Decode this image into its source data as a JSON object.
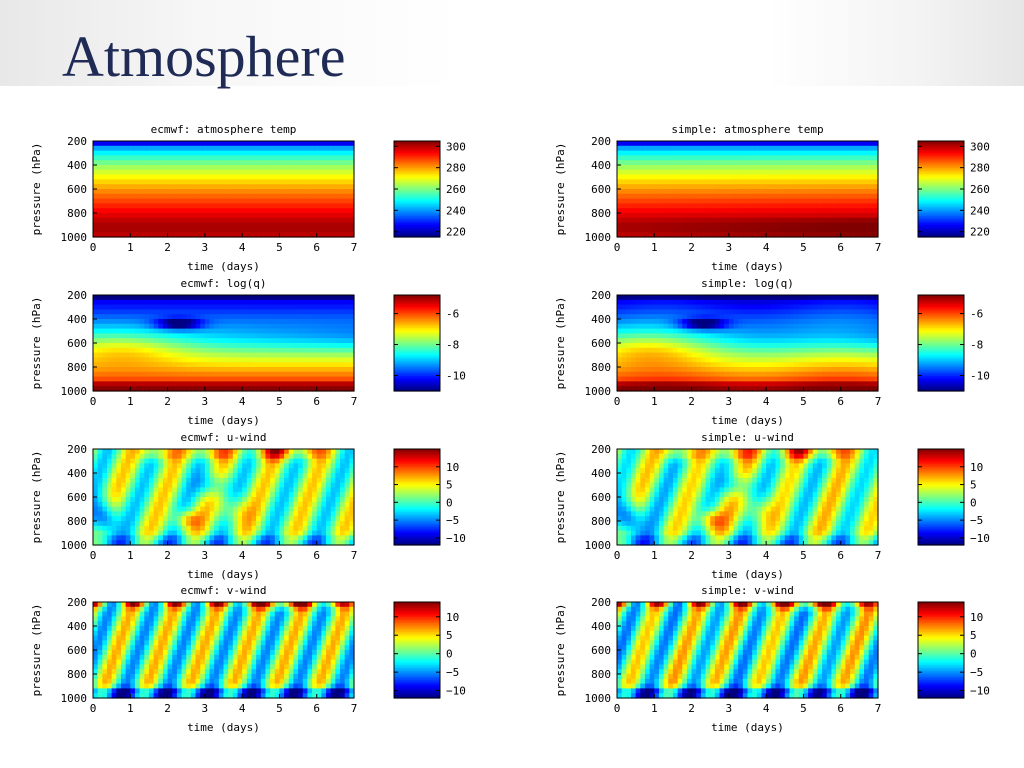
{
  "slide": {
    "title": "Atmosphere"
  },
  "colormap": "jet",
  "chart_data": [
    {
      "id": "ecmwf-temp",
      "type": "heatmap",
      "title": "ecmwf: atmosphere temp",
      "xlabel": "time (days)",
      "ylabel": "pressure (hPa)",
      "xlim": [
        0,
        7
      ],
      "ylim": [
        200,
        1000
      ],
      "y_inverted": true,
      "xticks": [
        "0",
        "1",
        "2",
        "3",
        "4",
        "5",
        "6",
        "7"
      ],
      "yticks": [
        "200",
        "400",
        "600",
        "800",
        "1000"
      ],
      "colorbar": {
        "range": [
          215,
          305
        ],
        "ticks": [
          220,
          240,
          260,
          280,
          300
        ],
        "tick_labels": [
          "220",
          "240",
          "260",
          "280",
          "300"
        ]
      },
      "field": "temp",
      "variant": "ecmwf"
    },
    {
      "id": "simple-temp",
      "type": "heatmap",
      "title": "simple: atmosphere temp",
      "xlabel": "time (days)",
      "ylabel": "pressure (hPa)",
      "xlim": [
        0,
        7
      ],
      "ylim": [
        200,
        1000
      ],
      "y_inverted": true,
      "xticks": [
        "0",
        "1",
        "2",
        "3",
        "4",
        "5",
        "6",
        "7"
      ],
      "yticks": [
        "200",
        "400",
        "600",
        "800",
        "1000"
      ],
      "colorbar": {
        "range": [
          215,
          305
        ],
        "ticks": [
          220,
          240,
          260,
          280,
          300
        ],
        "tick_labels": [
          "220",
          "240",
          "260",
          "280",
          "300"
        ]
      },
      "field": "temp",
      "variant": "simple"
    },
    {
      "id": "ecmwf-logq",
      "type": "heatmap",
      "title": "ecmwf: log(q)",
      "xlabel": "time (days)",
      "ylabel": "pressure (hPa)",
      "xlim": [
        0,
        7
      ],
      "ylim": [
        200,
        1000
      ],
      "y_inverted": true,
      "xticks": [
        "0",
        "1",
        "2",
        "3",
        "4",
        "5",
        "6",
        "7"
      ],
      "yticks": [
        "200",
        "400",
        "600",
        "800",
        "1000"
      ],
      "colorbar": {
        "range": [
          -11,
          -4.8
        ],
        "ticks": [
          -6,
          -8,
          -10
        ],
        "tick_labels": [
          "-6",
          "-8",
          "-10"
        ]
      },
      "field": "logq",
      "variant": "ecmwf"
    },
    {
      "id": "simple-logq",
      "type": "heatmap",
      "title": "simple: log(q)",
      "xlabel": "time (days)",
      "ylabel": "pressure (hPa)",
      "xlim": [
        0,
        7
      ],
      "ylim": [
        200,
        1000
      ],
      "y_inverted": true,
      "xticks": [
        "0",
        "1",
        "2",
        "3",
        "4",
        "5",
        "6",
        "7"
      ],
      "yticks": [
        "200",
        "400",
        "600",
        "800",
        "1000"
      ],
      "colorbar": {
        "range": [
          -11,
          -4.8
        ],
        "ticks": [
          -6,
          -8,
          -10
        ],
        "tick_labels": [
          "-6",
          "-8",
          "-10"
        ]
      },
      "field": "logq",
      "variant": "simple"
    },
    {
      "id": "ecmwf-u",
      "type": "heatmap",
      "title": "ecmwf: u-wind",
      "xlabel": "time (days)",
      "ylabel": "pressure (hPa)",
      "xlim": [
        0,
        7
      ],
      "ylim": [
        200,
        1000
      ],
      "y_inverted": true,
      "xticks": [
        "0",
        "1",
        "2",
        "3",
        "4",
        "5",
        "6",
        "7"
      ],
      "yticks": [
        "200",
        "400",
        "600",
        "800",
        "1000"
      ],
      "colorbar": {
        "range": [
          -12,
          15
        ],
        "ticks": [
          10,
          5,
          0,
          -5,
          -10
        ],
        "tick_labels": [
          "10",
          "5",
          "0",
          "−5",
          "−10"
        ]
      },
      "field": "u",
      "variant": "ecmwf"
    },
    {
      "id": "simple-u",
      "type": "heatmap",
      "title": "simple: u-wind",
      "xlabel": "time (days)",
      "ylabel": "pressure (hPa)",
      "xlim": [
        0,
        7
      ],
      "ylim": [
        200,
        1000
      ],
      "y_inverted": true,
      "xticks": [
        "0",
        "1",
        "2",
        "3",
        "4",
        "5",
        "6",
        "7"
      ],
      "yticks": [
        "200",
        "400",
        "600",
        "800",
        "1000"
      ],
      "colorbar": {
        "range": [
          -12,
          15
        ],
        "ticks": [
          10,
          5,
          0,
          -5,
          -10
        ],
        "tick_labels": [
          "10",
          "5",
          "0",
          "−5",
          "−10"
        ]
      },
      "field": "u",
      "variant": "simple"
    },
    {
      "id": "ecmwf-v",
      "type": "heatmap",
      "title": "ecmwf: v-wind",
      "xlabel": "time (days)",
      "ylabel": "pressure (hPa)",
      "xlim": [
        0,
        7
      ],
      "ylim": [
        200,
        1000
      ],
      "y_inverted": true,
      "xticks": [
        "0",
        "1",
        "2",
        "3",
        "4",
        "5",
        "6",
        "7"
      ],
      "yticks": [
        "200",
        "400",
        "600",
        "800",
        "1000"
      ],
      "colorbar": {
        "range": [
          -12,
          14
        ],
        "ticks": [
          10,
          5,
          0,
          -5,
          -10
        ],
        "tick_labels": [
          "10",
          "5",
          "0",
          "−5",
          "−10"
        ]
      },
      "field": "v",
      "variant": "ecmwf"
    },
    {
      "id": "simple-v",
      "type": "heatmap",
      "title": "simple: v-wind",
      "xlabel": "time (days)",
      "ylabel": "pressure (hPa)",
      "xlim": [
        0,
        7
      ],
      "ylim": [
        200,
        1000
      ],
      "y_inverted": true,
      "xticks": [
        "0",
        "1",
        "2",
        "3",
        "4",
        "5",
        "6",
        "7"
      ],
      "yticks": [
        "200",
        "400",
        "600",
        "800",
        "1000"
      ],
      "colorbar": {
        "range": [
          -12,
          14
        ],
        "ticks": [
          10,
          5,
          0,
          -5,
          -10
        ],
        "tick_labels": [
          "10",
          "5",
          "0",
          "−5",
          "−10"
        ]
      },
      "field": "v",
      "variant": "simple"
    }
  ]
}
